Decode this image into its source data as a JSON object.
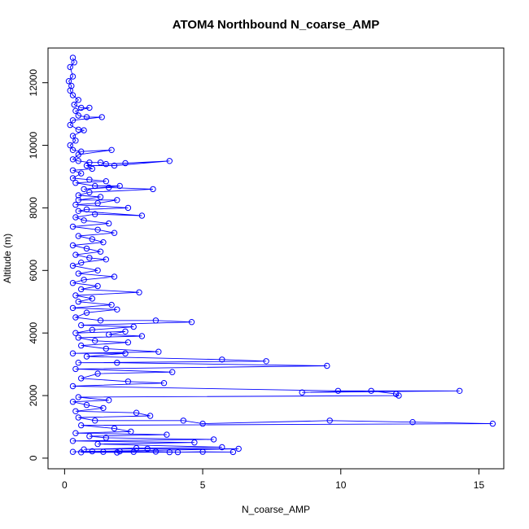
{
  "chart_data": {
    "type": "scatter",
    "title": "ATOM4 Northbound N_coarse_AMP",
    "xlabel": "N_coarse_AMP",
    "ylabel": "Altitude (m)",
    "xlim": [
      -0.6,
      15.9
    ],
    "ylim": [
      -340,
      13110
    ],
    "xticks": [
      0,
      5,
      10,
      15
    ],
    "yticks": [
      0,
      2000,
      4000,
      6000,
      8000,
      10000,
      12000
    ],
    "grid": false,
    "legend": "none",
    "marker": "open-circle",
    "connected": true,
    "color": "#0000ff",
    "series": [
      {
        "points": [
          [
            0.3,
            12800
          ],
          [
            0.35,
            12650
          ],
          [
            0.2,
            12500
          ],
          [
            0.3,
            12200
          ],
          [
            0.15,
            12050
          ],
          [
            0.25,
            11900
          ],
          [
            0.2,
            11750
          ],
          [
            0.3,
            11600
          ],
          [
            0.5,
            11450
          ],
          [
            0.35,
            11300
          ],
          [
            0.6,
            11200
          ],
          [
            0.9,
            11200
          ],
          [
            0.4,
            11100
          ],
          [
            0.5,
            10950
          ],
          [
            0.8,
            10900
          ],
          [
            1.35,
            10900
          ],
          [
            0.3,
            10800
          ],
          [
            0.2,
            10650
          ],
          [
            0.5,
            10500
          ],
          [
            0.7,
            10480
          ],
          [
            0.3,
            10300
          ],
          [
            0.4,
            10150
          ],
          [
            0.2,
            10000
          ],
          [
            0.3,
            9850
          ],
          [
            0.6,
            9800
          ],
          [
            1.7,
            9850
          ],
          [
            0.5,
            9700
          ],
          [
            0.3,
            9550
          ],
          [
            0.5,
            9500
          ],
          [
            0.9,
            9450
          ],
          [
            1.3,
            9450
          ],
          [
            1.5,
            9400
          ],
          [
            2.2,
            9430
          ],
          [
            3.8,
            9500
          ],
          [
            1.8,
            9350
          ],
          [
            0.8,
            9350
          ],
          [
            1.0,
            9250
          ],
          [
            0.3,
            9200
          ],
          [
            0.6,
            9100
          ],
          [
            0.3,
            8950
          ],
          [
            0.9,
            8900
          ],
          [
            1.5,
            8850
          ],
          [
            0.4,
            8800
          ],
          [
            1.1,
            8700
          ],
          [
            2.0,
            8700
          ],
          [
            0.7,
            8600
          ],
          [
            1.6,
            8650
          ],
          [
            3.2,
            8600
          ],
          [
            0.9,
            8500
          ],
          [
            0.5,
            8400
          ],
          [
            1.3,
            8350
          ],
          [
            0.5,
            8250
          ],
          [
            1.9,
            8250
          ],
          [
            1.2,
            8150
          ],
          [
            0.4,
            8100
          ],
          [
            2.3,
            8000
          ],
          [
            0.8,
            7950
          ],
          [
            0.5,
            7900
          ],
          [
            2.8,
            7750
          ],
          [
            1.1,
            7800
          ],
          [
            0.4,
            7700
          ],
          [
            0.7,
            7600
          ],
          [
            1.6,
            7500
          ],
          [
            0.3,
            7400
          ],
          [
            1.2,
            7300
          ],
          [
            1.8,
            7200
          ],
          [
            0.5,
            7100
          ],
          [
            1.0,
            7000
          ],
          [
            1.4,
            6900
          ],
          [
            0.3,
            6800
          ],
          [
            0.8,
            6700
          ],
          [
            1.3,
            6600
          ],
          [
            0.4,
            6500
          ],
          [
            0.9,
            6400
          ],
          [
            1.5,
            6350
          ],
          [
            0.6,
            6250
          ],
          [
            0.3,
            6150
          ],
          [
            1.2,
            6000
          ],
          [
            0.5,
            5900
          ],
          [
            1.8,
            5800
          ],
          [
            0.7,
            5700
          ],
          [
            0.3,
            5600
          ],
          [
            1.2,
            5500
          ],
          [
            0.6,
            5400
          ],
          [
            2.7,
            5300
          ],
          [
            0.4,
            5200
          ],
          [
            1.0,
            5100
          ],
          [
            0.5,
            5000
          ],
          [
            1.7,
            4900
          ],
          [
            0.3,
            4800
          ],
          [
            1.9,
            4750
          ],
          [
            0.8,
            4650
          ],
          [
            0.4,
            4500
          ],
          [
            1.3,
            4400
          ],
          [
            3.3,
            4400
          ],
          [
            4.6,
            4350
          ],
          [
            0.6,
            4250
          ],
          [
            2.5,
            4200
          ],
          [
            1.0,
            4100
          ],
          [
            0.4,
            4000
          ],
          [
            2.2,
            4050
          ],
          [
            1.6,
            3950
          ],
          [
            2.8,
            3900
          ],
          [
            0.5,
            3850
          ],
          [
            1.1,
            3750
          ],
          [
            2.3,
            3700
          ],
          [
            0.6,
            3600
          ],
          [
            1.5,
            3500
          ],
          [
            3.4,
            3400
          ],
          [
            0.3,
            3350
          ],
          [
            2.2,
            3350
          ],
          [
            0.8,
            3250
          ],
          [
            5.7,
            3150
          ],
          [
            7.3,
            3100
          ],
          [
            0.5,
            3050
          ],
          [
            1.9,
            3050
          ],
          [
            9.5,
            2950
          ],
          [
            0.4,
            2850
          ],
          [
            3.9,
            2750
          ],
          [
            1.2,
            2700
          ],
          [
            0.6,
            2550
          ],
          [
            2.3,
            2450
          ],
          [
            3.6,
            2400
          ],
          [
            0.3,
            2300
          ],
          [
            9.9,
            2150
          ],
          [
            14.3,
            2150
          ],
          [
            8.6,
            2100
          ],
          [
            11.1,
            2150
          ],
          [
            12.0,
            2050
          ],
          [
            12.1,
            2000
          ],
          [
            0.5,
            1950
          ],
          [
            1.6,
            1850
          ],
          [
            0.3,
            1800
          ],
          [
            0.8,
            1700
          ],
          [
            1.4,
            1600
          ],
          [
            0.4,
            1500
          ],
          [
            2.6,
            1450
          ],
          [
            3.1,
            1350
          ],
          [
            0.5,
            1300
          ],
          [
            1.1,
            1200
          ],
          [
            4.3,
            1200
          ],
          [
            5.0,
            1100
          ],
          [
            9.6,
            1200
          ],
          [
            12.6,
            1150
          ],
          [
            15.5,
            1100
          ],
          [
            0.6,
            1050
          ],
          [
            1.8,
            950
          ],
          [
            2.4,
            850
          ],
          [
            0.4,
            800
          ],
          [
            3.7,
            750
          ],
          [
            0.9,
            700
          ],
          [
            1.5,
            650
          ],
          [
            5.4,
            600
          ],
          [
            0.3,
            550
          ],
          [
            4.7,
            500
          ],
          [
            1.2,
            450
          ],
          [
            5.7,
            350
          ],
          [
            2.6,
            320
          ],
          [
            0.7,
            280
          ],
          [
            3.0,
            300
          ],
          [
            6.3,
            300
          ],
          [
            0.3,
            200
          ],
          [
            1.0,
            220
          ],
          [
            1.9,
            180
          ],
          [
            2.5,
            200
          ],
          [
            3.3,
            210
          ],
          [
            4.1,
            190
          ],
          [
            5.0,
            205
          ],
          [
            6.1,
            195
          ],
          [
            0.6,
            185
          ],
          [
            1.4,
            200
          ],
          [
            3.8,
            190
          ],
          [
            2.0,
            220
          ]
        ]
      }
    ]
  }
}
